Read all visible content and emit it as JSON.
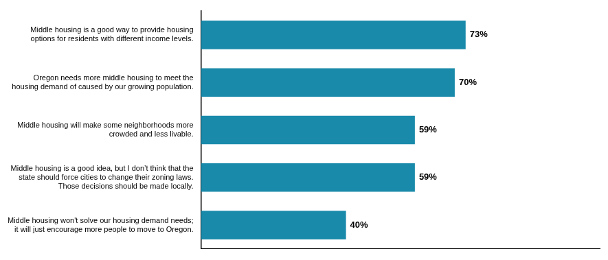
{
  "chart_data": {
    "type": "bar",
    "orientation": "horizontal",
    "categories": [
      "Middle housing is a good way to provide housing\noptions for residents with different income levels.",
      "Oregon needs more middle housing to meet the\nhousing demand of caused by our growing population.",
      "Middle housing will make some neighborhoods more\ncrowded and less livable.",
      "Middle housing is a good idea, but I don’t think that the\nstate should force cities to change their zoning laws.\nThose decisions should be made locally.",
      "Middle housing won't solve our housing demand needs;\nit will just encourage more people to move to Oregon."
    ],
    "values": [
      73,
      70,
      59,
      59,
      40
    ],
    "value_labels": [
      "73%",
      "70%",
      "59%",
      "59%",
      "40%"
    ],
    "data_labels": true,
    "color": "#1a8aaa",
    "xlim": [
      0,
      110
    ],
    "grid": false,
    "tick_labels": "y"
  }
}
